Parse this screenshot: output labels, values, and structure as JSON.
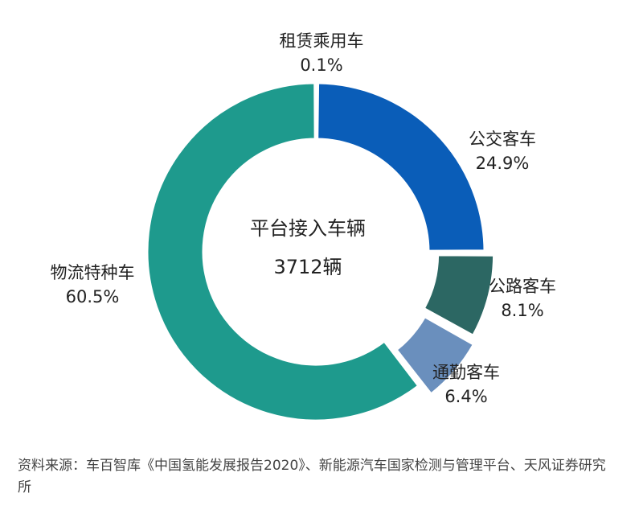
{
  "chart_data": {
    "type": "pie",
    "donut": true,
    "center_title": "平台接入车辆",
    "center_value": "3712辆",
    "slices": [
      {
        "label": "租赁乘用车",
        "percent_text": "0.1%",
        "value": 0.1,
        "color": "#7fb3d5"
      },
      {
        "label": "公交客车",
        "percent_text": "24.9%",
        "value": 24.9,
        "color": "#0a5db8"
      },
      {
        "label": "公路客车",
        "percent_text": "8.1%",
        "value": 8.1,
        "color": "#2c6763"
      },
      {
        "label": "通勤客车",
        "percent_text": "6.4%",
        "value": 6.4,
        "color": "#6a8fbd"
      },
      {
        "label": "物流特种车",
        "percent_text": "60.5%",
        "value": 60.5,
        "color": "#1e9a8d"
      }
    ]
  },
  "source_text": "资料来源：车百智库《中国氢能发展报告2020》、新能源汽车国家检测与管理平台、天风证券研究所"
}
